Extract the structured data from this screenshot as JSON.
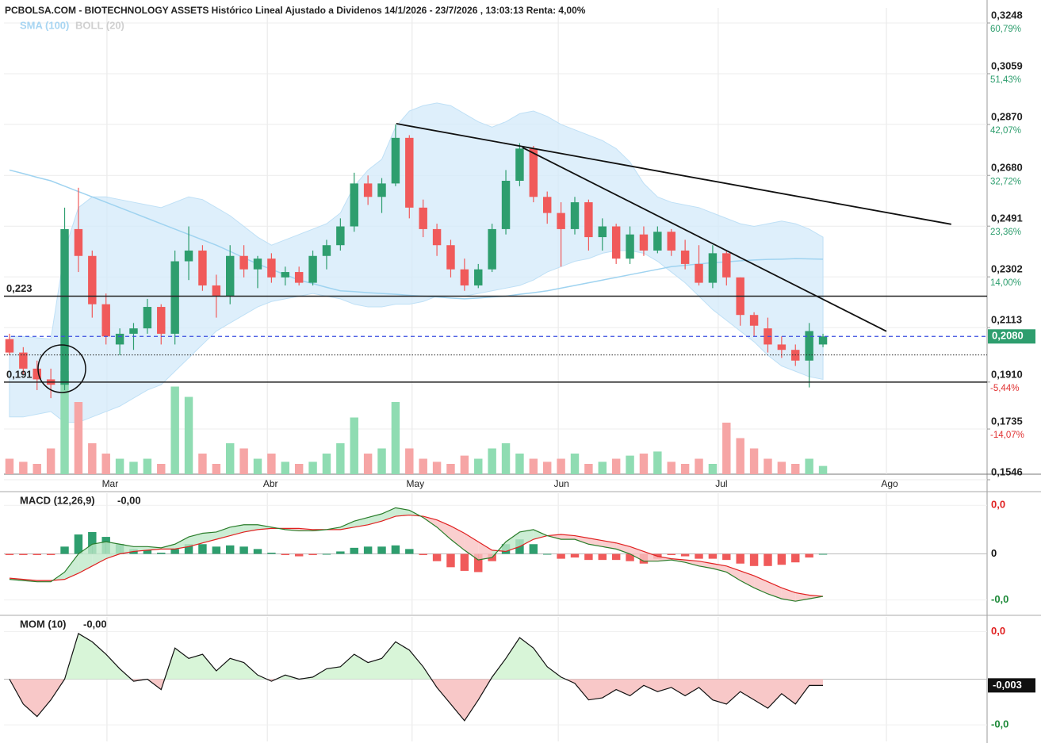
{
  "chart_data": [
    {
      "type": "candlestick",
      "title": "PCBOLSA.COM - BIOTECHNOLOGY ASSETS Histórico Lineal Ajustado a Dividenos 14/1/2026 - 23/7/2026 , 13:03:13 Renta: 4,00%",
      "xlim": [
        -0.4,
        70.9
      ],
      "x_ticks": [
        {
          "value": 7.07,
          "label": "Mar"
        },
        {
          "value": 18.7,
          "label": "Abr"
        },
        {
          "value": 29.2,
          "label": "May"
        },
        {
          "value": 39.8,
          "label": "Jun"
        },
        {
          "value": 51.4,
          "label": "Jul"
        },
        {
          "value": 63.6,
          "label": "Ago"
        }
      ],
      "ylim": [
        0.1546,
        0.3248
      ],
      "yticks": [
        {
          "value": 0.3248,
          "label": "0,3248"
        },
        {
          "value": 0.3059,
          "label": "0,3059"
        },
        {
          "value": 0.287,
          "label": "0,2870"
        },
        {
          "value": 0.268,
          "label": "0,2680"
        },
        {
          "value": 0.2491,
          "label": "0,2491"
        },
        {
          "value": 0.2302,
          "label": "0,2302"
        },
        {
          "value": 0.2113,
          "label": "0,2113"
        },
        {
          "value": 0.191,
          "label": "0,1910"
        },
        {
          "value": 0.1735,
          "label": "0,1735"
        },
        {
          "value": 0.1546,
          "label": "0,1546"
        }
      ],
      "ytick_changes": [
        "60,79%",
        "51,43%",
        "42,07%",
        "32,72%",
        "23,36%",
        "14,00%",
        null,
        "-5,44%",
        "-14,07%",
        null
      ],
      "grid": true,
      "up_color": "#2e9e6e",
      "down_color": "#f05a5a",
      "ohlc": [
        [
          0.207,
          0.209,
          0.201,
          0.202
        ],
        [
          0.202,
          0.204,
          0.194,
          0.196
        ],
        [
          0.196,
          0.199,
          0.188,
          0.192
        ],
        [
          0.192,
          0.196,
          0.185,
          0.19
        ],
        [
          0.19,
          0.256,
          0.188,
          0.248
        ],
        [
          0.248,
          0.2634,
          0.232,
          0.238
        ],
        [
          0.238,
          0.24,
          0.215,
          0.22
        ],
        [
          0.22,
          0.224,
          0.205,
          0.208
        ],
        [
          0.205,
          0.211,
          0.201,
          0.209
        ],
        [
          0.209,
          0.213,
          0.203,
          0.211
        ],
        [
          0.211,
          0.222,
          0.209,
          0.219
        ],
        [
          0.219,
          0.22,
          0.205,
          0.209
        ],
        [
          0.209,
          0.24,
          0.205,
          0.236
        ],
        [
          0.236,
          0.249,
          0.229,
          0.24
        ],
        [
          0.24,
          0.242,
          0.225,
          0.227
        ],
        [
          0.227,
          0.231,
          0.215,
          0.223
        ],
        [
          0.223,
          0.242,
          0.22,
          0.238
        ],
        [
          0.238,
          0.242,
          0.23,
          0.233
        ],
        [
          0.233,
          0.238,
          0.226,
          0.237
        ],
        [
          0.237,
          0.239,
          0.228,
          0.23
        ],
        [
          0.23,
          0.234,
          0.227,
          0.232
        ],
        [
          0.232,
          0.234,
          0.227,
          0.228
        ],
        [
          0.228,
          0.24,
          0.227,
          0.238
        ],
        [
          0.238,
          0.244,
          0.233,
          0.242
        ],
        [
          0.242,
          0.252,
          0.24,
          0.249
        ],
        [
          0.249,
          0.269,
          0.247,
          0.265
        ],
        [
          0.265,
          0.268,
          0.257,
          0.26
        ],
        [
          0.26,
          0.267,
          0.254,
          0.265
        ],
        [
          0.265,
          0.287,
          0.264,
          0.282
        ],
        [
          0.282,
          0.283,
          0.252,
          0.256
        ],
        [
          0.256,
          0.259,
          0.245,
          0.248
        ],
        [
          0.248,
          0.25,
          0.238,
          0.242
        ],
        [
          0.242,
          0.244,
          0.23,
          0.233
        ],
        [
          0.233,
          0.237,
          0.225,
          0.227
        ],
        [
          0.227,
          0.235,
          0.226,
          0.233
        ],
        [
          0.233,
          0.25,
          0.232,
          0.248
        ],
        [
          0.248,
          0.27,
          0.246,
          0.266
        ],
        [
          0.266,
          0.28,
          0.264,
          0.278
        ],
        [
          0.278,
          0.279,
          0.258,
          0.26
        ],
        [
          0.26,
          0.262,
          0.25,
          0.254
        ],
        [
          0.254,
          0.258,
          0.234,
          0.248
        ],
        [
          0.248,
          0.26,
          0.246,
          0.258
        ],
        [
          0.258,
          0.259,
          0.24,
          0.245
        ],
        [
          0.245,
          0.252,
          0.24,
          0.249
        ],
        [
          0.249,
          0.25,
          0.235,
          0.237
        ],
        [
          0.237,
          0.249,
          0.235,
          0.246
        ],
        [
          0.246,
          0.249,
          0.238,
          0.24
        ],
        [
          0.24,
          0.249,
          0.239,
          0.247
        ],
        [
          0.247,
          0.248,
          0.238,
          0.24
        ],
        [
          0.24,
          0.244,
          0.233,
          0.235
        ],
        [
          0.235,
          0.242,
          0.227,
          0.228
        ],
        [
          0.228,
          0.242,
          0.226,
          0.239
        ],
        [
          0.239,
          0.24,
          0.227,
          0.23
        ],
        [
          0.23,
          0.23,
          0.212,
          0.216
        ],
        [
          0.216,
          0.217,
          0.208,
          0.212
        ],
        [
          0.211,
          0.215,
          0.202,
          0.205
        ],
        [
          0.205,
          0.208,
          0.2,
          0.203
        ],
        [
          0.203,
          0.205,
          0.197,
          0.199
        ],
        [
          0.199,
          0.213,
          0.189,
          0.21
        ],
        [
          0.205,
          0.209,
          0.204,
          0.208
        ]
      ],
      "volume": [
        15,
        12,
        10,
        25,
        100,
        70,
        30,
        20,
        15,
        12,
        15,
        10,
        85,
        75,
        20,
        10,
        30,
        25,
        15,
        20,
        12,
        10,
        12,
        20,
        30,
        55,
        20,
        25,
        70,
        25,
        15,
        12,
        10,
        18,
        15,
        25,
        30,
        20,
        15,
        12,
        15,
        20,
        10,
        12,
        15,
        18,
        20,
        22,
        12,
        10,
        15,
        10,
        50,
        35,
        25,
        15,
        12,
        10,
        15,
        8
      ],
      "indicators": [
        {
          "name": "SMA (100)",
          "color": "#9fd3f0",
          "values": [
            0.27,
            0.2687,
            0.2673,
            0.266,
            0.264,
            0.262,
            0.26,
            0.258,
            0.256,
            0.254,
            0.252,
            0.25,
            0.248,
            0.246,
            0.244,
            0.242,
            0.2397,
            0.2373,
            0.235,
            0.233,
            0.231,
            0.229,
            0.2277,
            0.2263,
            0.225,
            0.2247,
            0.2243,
            0.224,
            0.2237,
            0.2233,
            0.223,
            0.2227,
            0.2223,
            0.222,
            0.2223,
            0.2227,
            0.223,
            0.2237,
            0.2243,
            0.225,
            0.226,
            0.227,
            0.228,
            0.229,
            0.23,
            0.231,
            0.232,
            0.233,
            0.234,
            0.2345,
            0.235,
            0.2355,
            0.2358,
            0.2362,
            0.2365,
            0.2367,
            0.2368,
            0.237,
            0.2369,
            0.2368
          ]
        },
        {
          "name": "BOLL (20)",
          "color": "#c8c8c8",
          "upper": [
            0.208,
            0.208,
            0.2075,
            0.207,
            0.24,
            0.256,
            0.26,
            0.26,
            0.259,
            0.258,
            0.257,
            0.256,
            0.258,
            0.26,
            0.259,
            0.256,
            0.253,
            0.249,
            0.245,
            0.242,
            0.244,
            0.246,
            0.248,
            0.25,
            0.254,
            0.264,
            0.27,
            0.274,
            0.286,
            0.292,
            0.294,
            0.295,
            0.294,
            0.291,
            0.288,
            0.286,
            0.288,
            0.291,
            0.292,
            0.29,
            0.287,
            0.285,
            0.283,
            0.281,
            0.278,
            0.273,
            0.265,
            0.26,
            0.258,
            0.257,
            0.256,
            0.254,
            0.252,
            0.25,
            0.249,
            0.25,
            0.251,
            0.25,
            0.248,
            0.245
          ],
          "lower": [
            0.178,
            0.178,
            0.179,
            0.18,
            0.176,
            0.176,
            0.178,
            0.18,
            0.182,
            0.185,
            0.188,
            0.19,
            0.195,
            0.2,
            0.205,
            0.21,
            0.213,
            0.216,
            0.219,
            0.221,
            0.222,
            0.223,
            0.224,
            0.223,
            0.222,
            0.22,
            0.219,
            0.219,
            0.22,
            0.22,
            0.221,
            0.223,
            0.223,
            0.223,
            0.224,
            0.225,
            0.226,
            0.227,
            0.229,
            0.232,
            0.234,
            0.236,
            0.237,
            0.239,
            0.24,
            0.24,
            0.239,
            0.236,
            0.232,
            0.228,
            0.223,
            0.218,
            0.214,
            0.21,
            0.206,
            0.201,
            0.197,
            0.195,
            0.193,
            0.192
          ]
        }
      ],
      "hlines": [
        {
          "value": 0.223,
          "label": "0,223"
        },
        {
          "value": 0.191,
          "label": "0,191"
        }
      ],
      "last_line": 0.2011,
      "current_price": {
        "value": 0.208,
        "label": "0,2080"
      },
      "trendlines": [
        {
          "x": [
            28.05,
            68.3
          ],
          "y": [
            0.2873,
            0.2498
          ]
        },
        {
          "x": [
            37.2,
            63.6
          ],
          "y": [
            0.2784,
            0.2099
          ]
        }
      ]
    },
    {
      "type": "macd",
      "name": "MACD (12,26,9)",
      "current_label": "-0,00",
      "ylim": [
        -0.005,
        0.005
      ],
      "yticks": [
        {
          "value": 0.004,
          "label": "0,0"
        },
        0,
        {
          "value": -0.0038,
          "label": "-0,0"
        }
      ],
      "macd": [
        -0.0021,
        -0.0022,
        -0.0023,
        -0.0023,
        -0.0015,
        0,
        0.0008,
        0.001,
        0.0008,
        0.0006,
        0.0006,
        0.0005,
        0.0008,
        0.0014,
        0.0017,
        0.0018,
        0.0022,
        0.0024,
        0.0024,
        0.0022,
        0.002,
        0.0019,
        0.0019,
        0.002,
        0.0022,
        0.0027,
        0.003,
        0.0033,
        0.0038,
        0.0036,
        0.003,
        0.0022,
        0.0012,
        0.0003,
        -0.0005,
        -0.0003,
        0.001,
        0.0018,
        0.002,
        0.0015,
        0.0012,
        0.0012,
        0.0008,
        0.0006,
        0.0004,
        0,
        -0.0006,
        -0.0006,
        -0.0005,
        -0.0007,
        -0.001,
        -0.0012,
        -0.0015,
        -0.0022,
        -0.0028,
        -0.0033,
        -0.0037,
        -0.0039,
        -0.0037,
        -0.0035
      ],
      "signal": [
        -0.002,
        -0.0021,
        -0.0022,
        -0.0022,
        -0.0021,
        -0.0016,
        -0.001,
        -0.0004,
        0,
        0.0002,
        0.0003,
        0.0004,
        0.0004,
        0.0006,
        0.0009,
        0.0012,
        0.0015,
        0.0018,
        0.002,
        0.0021,
        0.0021,
        0.0021,
        0.002,
        0.002,
        0.002,
        0.0022,
        0.0024,
        0.0027,
        0.0031,
        0.0032,
        0.0031,
        0.0028,
        0.0023,
        0.0017,
        0.001,
        0.0003,
        0.0002,
        0.0006,
        0.0012,
        0.0015,
        0.0016,
        0.0015,
        0.0013,
        0.0011,
        0.0009,
        0.0006,
        0.0002,
        -0.0002,
        -0.0004,
        -0.0005,
        -0.0006,
        -0.0008,
        -0.001,
        -0.0014,
        -0.0018,
        -0.0023,
        -0.0028,
        -0.0032,
        -0.0034,
        -0.0035
      ],
      "histogram": [
        -0.0001,
        -0.0001,
        -0.0001,
        -0.0001,
        0.0006,
        0.0016,
        0.0018,
        0.0014,
        0.0008,
        0.0004,
        0.0003,
        0.0001,
        0.0004,
        0.0008,
        0.0008,
        0.0006,
        0.0007,
        0.0006,
        0.0004,
        0.0001,
        -0.0001,
        -0.0002,
        -0.0001,
        0,
        0.0002,
        0.0005,
        0.0006,
        0.0006,
        0.0007,
        0.0004,
        -0.0001,
        -0.0006,
        -0.0011,
        -0.0014,
        -0.0015,
        -0.0006,
        0.0008,
        0.0012,
        0.0008,
        0,
        -0.0004,
        -0.0003,
        -0.0005,
        -0.0005,
        -0.0005,
        -0.0006,
        -0.0008,
        -0.0004,
        -0.0001,
        -0.0002,
        -0.0004,
        -0.0004,
        -0.0005,
        -0.0008,
        -0.001,
        -0.001,
        -0.0009,
        -0.0007,
        -0.0003,
        0
      ],
      "macd_color": "#2a7d2a",
      "signal_color": "#e02020"
    },
    {
      "type": "line",
      "name": "MOM (10)",
      "current_label": "-0,00",
      "ylim": [
        -0.03,
        0.03
      ],
      "yticks": [
        {
          "value": 0.023,
          "label": "0,0"
        },
        {
          "value": -0.022,
          "label": "-0,0"
        }
      ],
      "last": {
        "value": -0.003,
        "label": "-0,003"
      },
      "color": "#111111",
      "values": [
        0,
        -0.012,
        -0.018,
        -0.01,
        0,
        0.022,
        0.018,
        0.012,
        0.005,
        -0.001,
        0,
        -0.005,
        0.015,
        0.01,
        0.012,
        0.004,
        0.01,
        0.008,
        0.002,
        -0.001,
        0.002,
        0,
        0.001,
        0.005,
        0.006,
        0.012,
        0.008,
        0.01,
        0.018,
        0.014,
        0.006,
        -0.004,
        -0.012,
        -0.02,
        -0.01,
        0.001,
        0.01,
        0.02,
        0.015,
        0.006,
        0.001,
        -0.002,
        -0.01,
        -0.009,
        -0.005,
        -0.008,
        -0.003,
        -0.006,
        -0.004,
        -0.008,
        -0.004,
        -0.01,
        -0.012,
        -0.006,
        -0.01,
        -0.014,
        -0.007,
        -0.012,
        -0.003,
        -0.003
      ]
    }
  ]
}
